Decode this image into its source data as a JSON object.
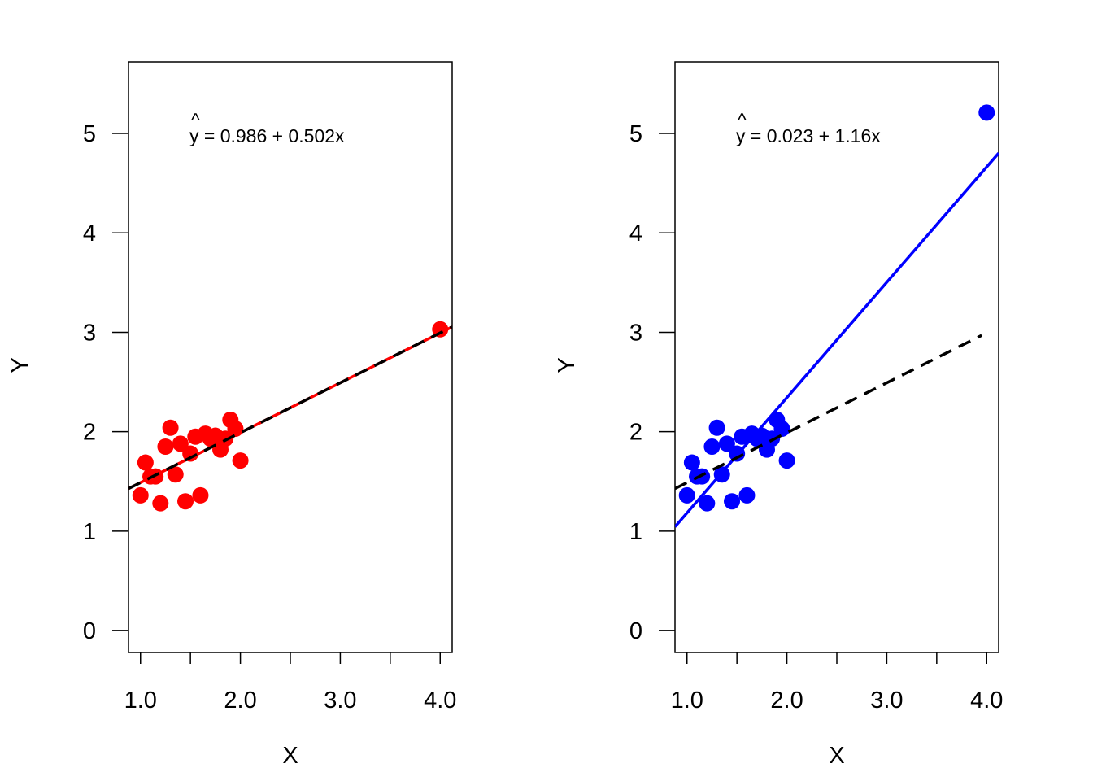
{
  "chart_data": [
    {
      "type": "scatter",
      "title": "",
      "xlabel": "X",
      "ylabel": "Y",
      "xlim": [
        0.88,
        4.12
      ],
      "ylim": [
        -0.22,
        5.72
      ],
      "x_ticks": [
        1.0,
        1.5,
        2.0,
        2.5,
        3.0,
        3.5,
        4.0
      ],
      "x_tick_labels": [
        "1.0",
        "",
        "2.0",
        "",
        "3.0",
        "",
        "4.0"
      ],
      "y_ticks": [
        0,
        1,
        2,
        3,
        4,
        5
      ],
      "y_tick_labels": [
        "0",
        "1",
        "2",
        "3",
        "4",
        "5"
      ],
      "grid": false,
      "point_color": "#ff0000",
      "equation": {
        "hat": "^",
        "text": "y = 0.986 + 0.502x"
      },
      "points": [
        {
          "x": 1.0,
          "y": 1.36
        },
        {
          "x": 1.05,
          "y": 1.69
        },
        {
          "x": 1.1,
          "y": 1.55
        },
        {
          "x": 1.15,
          "y": 1.55
        },
        {
          "x": 1.2,
          "y": 1.28
        },
        {
          "x": 1.25,
          "y": 1.85
        },
        {
          "x": 1.3,
          "y": 2.04
        },
        {
          "x": 1.35,
          "y": 1.57
        },
        {
          "x": 1.4,
          "y": 1.88
        },
        {
          "x": 1.45,
          "y": 1.3
        },
        {
          "x": 1.5,
          "y": 1.78
        },
        {
          "x": 1.55,
          "y": 1.95
        },
        {
          "x": 1.6,
          "y": 1.36
        },
        {
          "x": 1.65,
          "y": 1.98
        },
        {
          "x": 1.7,
          "y": 1.93
        },
        {
          "x": 1.75,
          "y": 1.96
        },
        {
          "x": 1.8,
          "y": 1.82
        },
        {
          "x": 1.85,
          "y": 1.93
        },
        {
          "x": 1.9,
          "y": 2.12
        },
        {
          "x": 1.95,
          "y": 2.03
        },
        {
          "x": 2.0,
          "y": 1.71
        },
        {
          "x": 4.0,
          "y": 3.03
        }
      ],
      "lines": [
        {
          "name": "fit",
          "intercept": 0.986,
          "slope": 0.502,
          "color": "#ff0000",
          "style": "solid"
        },
        {
          "name": "reference",
          "intercept": 0.986,
          "slope": 0.502,
          "color": "#000000",
          "style": "dashed"
        }
      ]
    },
    {
      "type": "scatter",
      "title": "",
      "xlabel": "X",
      "ylabel": "Y",
      "xlim": [
        0.88,
        4.12
      ],
      "ylim": [
        -0.22,
        5.72
      ],
      "x_ticks": [
        1.0,
        1.5,
        2.0,
        2.5,
        3.0,
        3.5,
        4.0
      ],
      "x_tick_labels": [
        "1.0",
        "",
        "2.0",
        "",
        "3.0",
        "",
        "4.0"
      ],
      "y_ticks": [
        0,
        1,
        2,
        3,
        4,
        5
      ],
      "y_tick_labels": [
        "0",
        "1",
        "2",
        "3",
        "4",
        "5"
      ],
      "grid": false,
      "point_color": "#0000ff",
      "equation": {
        "hat": "^",
        "text": "y = 0.023 + 1.16x"
      },
      "points": [
        {
          "x": 1.0,
          "y": 1.36
        },
        {
          "x": 1.05,
          "y": 1.69
        },
        {
          "x": 1.1,
          "y": 1.55
        },
        {
          "x": 1.15,
          "y": 1.55
        },
        {
          "x": 1.2,
          "y": 1.28
        },
        {
          "x": 1.25,
          "y": 1.85
        },
        {
          "x": 1.3,
          "y": 2.04
        },
        {
          "x": 1.35,
          "y": 1.57
        },
        {
          "x": 1.4,
          "y": 1.88
        },
        {
          "x": 1.45,
          "y": 1.3
        },
        {
          "x": 1.5,
          "y": 1.78
        },
        {
          "x": 1.55,
          "y": 1.95
        },
        {
          "x": 1.6,
          "y": 1.36
        },
        {
          "x": 1.65,
          "y": 1.98
        },
        {
          "x": 1.7,
          "y": 1.93
        },
        {
          "x": 1.75,
          "y": 1.96
        },
        {
          "x": 1.8,
          "y": 1.82
        },
        {
          "x": 1.85,
          "y": 1.93
        },
        {
          "x": 1.9,
          "y": 2.12
        },
        {
          "x": 1.95,
          "y": 2.03
        },
        {
          "x": 2.0,
          "y": 1.71
        },
        {
          "x": 4.0,
          "y": 5.21
        }
      ],
      "lines": [
        {
          "name": "fit",
          "intercept": 0.023,
          "slope": 1.16,
          "color": "#0000ff",
          "style": "solid"
        },
        {
          "name": "reference",
          "intercept": 0.986,
          "slope": 0.502,
          "color": "#000000",
          "style": "dashed",
          "x_end": 3.95
        }
      ]
    }
  ]
}
